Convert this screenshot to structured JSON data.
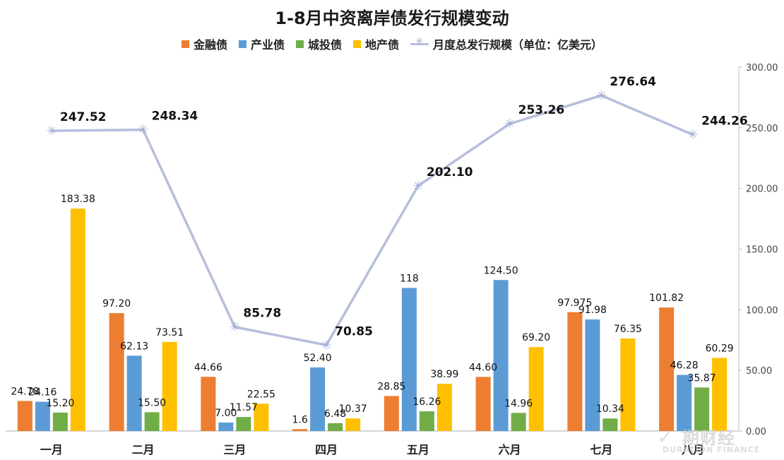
{
  "chart_data": {
    "type": "bar",
    "title": "1-8月中资离岸债发行规模变动",
    "categories": [
      "一月",
      "二月",
      "三月",
      "四月",
      "五月",
      "六月",
      "七月",
      "八月"
    ],
    "series": [
      {
        "name": "金融债",
        "color": "#ed7d31",
        "values": [
          24.78,
          97.2,
          44.66,
          1.6,
          28.85,
          44.6,
          97.975,
          101.82
        ],
        "labels": [
          "24.78",
          "97.20",
          "44.66",
          "1.6",
          "28.85",
          "44.60",
          "97.975",
          "101.82"
        ]
      },
      {
        "name": "产业债",
        "color": "#5b9bd5",
        "values": [
          24.16,
          62.13,
          7.0,
          52.4,
          118,
          124.5,
          91.98,
          46.28
        ],
        "labels": [
          "24.16",
          "62.13",
          "7.00",
          "52.40",
          "118",
          "124.50",
          "91.98",
          "46.28"
        ]
      },
      {
        "name": "城投债",
        "color": "#70ad47",
        "values": [
          15.2,
          15.5,
          11.57,
          6.48,
          16.26,
          14.96,
          10.34,
          35.87
        ],
        "labels": [
          "15.20",
          "15.50",
          "11.57",
          "6.48",
          "16.26",
          "14.96",
          "10.34",
          "35.87"
        ]
      },
      {
        "name": "地产债",
        "color": "#ffc000",
        "values": [
          183.38,
          73.51,
          22.55,
          10.37,
          38.99,
          69.2,
          76.35,
          60.29
        ],
        "labels": [
          "183.38",
          "73.51",
          "22.55",
          "10.37",
          "38.99",
          "69.20",
          "76.35",
          "60.29"
        ]
      }
    ],
    "line_series": {
      "name": "月度总发行规模（单位：亿美元）",
      "type": "line",
      "color": "#b6bedd",
      "values": [
        247.52,
        248.34,
        85.78,
        70.85,
        202.1,
        253.26,
        276.64,
        244.26
      ],
      "labels": [
        "247.52",
        "248.34",
        "85.78",
        "70.85",
        "202.10",
        "253.26",
        "276.64",
        "244.26"
      ]
    },
    "y_axis": {
      "position": "right",
      "ylim": [
        0,
        300
      ],
      "ticks": [
        "0.00",
        "50.00",
        "100.00",
        "150.00",
        "200.00",
        "250.00",
        "300.00"
      ]
    },
    "grid": false,
    "legend": "top"
  },
  "watermark": {
    "cn": "期财经",
    "en": "DURATION FINANCE"
  }
}
